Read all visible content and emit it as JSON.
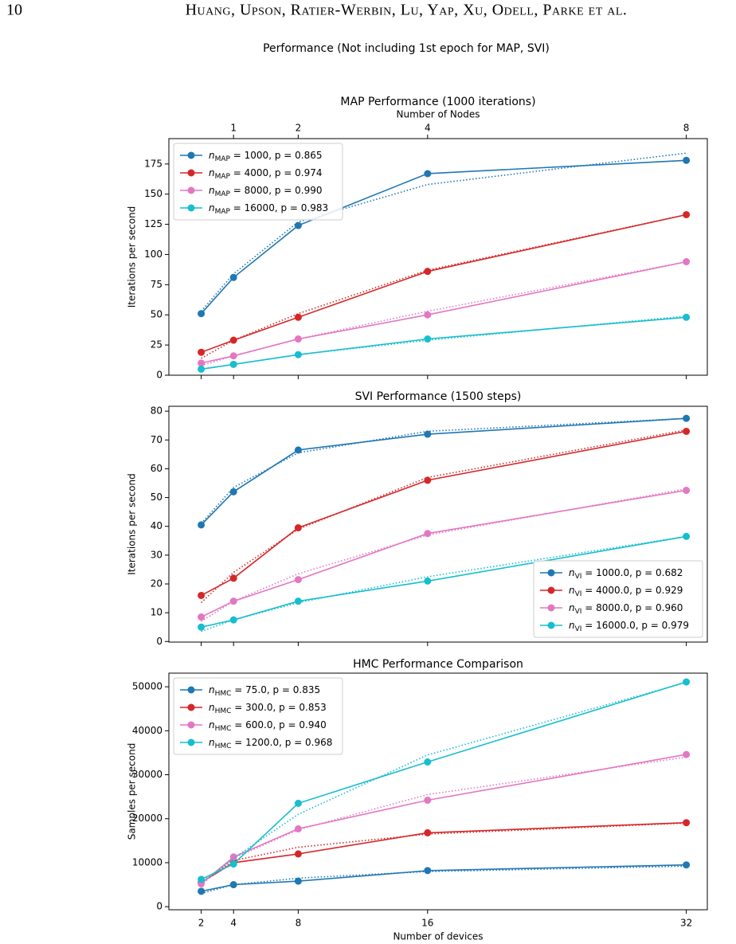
{
  "header": {
    "page_number": "10",
    "authors": "Huang, Upson, Ratier-Werbin, Lu, Yap, Xu, Odell, Parke et al."
  },
  "suptitle": "Performance (Not including 1st epoch for MAP, SVI)",
  "chart_data": [
    {
      "type": "line",
      "title": "MAP Performance (1000 iterations)",
      "ylabel": "Iterations per second",
      "x": [
        2,
        4,
        8,
        16,
        32
      ],
      "xlim": [
        0,
        33.3
      ],
      "xticks": [
        2,
        4,
        8,
        16,
        32
      ],
      "xtick_labels": false,
      "x2label": "Number of Nodes",
      "x2ticks": [
        {
          "value": 4,
          "label": "1"
        },
        {
          "value": 8,
          "label": "2"
        },
        {
          "value": 16,
          "label": "4"
        },
        {
          "value": 32,
          "label": "8"
        }
      ],
      "ylim": [
        0,
        196
      ],
      "yticks": [
        0,
        25,
        50,
        75,
        100,
        125,
        150,
        175
      ],
      "legend": "upper left",
      "series": [
        {
          "symbol": "n",
          "subscript": "MAP",
          "name": " = 1000, p = 0.865",
          "color": "#1f77b4",
          "values": [
            51,
            81,
            124,
            167,
            178
          ],
          "fit_values": [
            53,
            84,
            127,
            158,
            184
          ]
        },
        {
          "symbol": "n",
          "subscript": "MAP",
          "name": " = 4000, p = 0.974",
          "color": "#d62728",
          "values": [
            19,
            29,
            48,
            86,
            133
          ],
          "fit_values": [
            14,
            29,
            51,
            87,
            133
          ]
        },
        {
          "symbol": "n",
          "subscript": "MAP",
          "name": " = 8000, p = 0.990",
          "color": "#e377c2",
          "values": [
            10,
            16,
            30,
            50,
            94
          ],
          "fit_values": [
            8,
            16,
            30,
            53,
            94
          ]
        },
        {
          "symbol": "n",
          "subscript": "MAP",
          "name": " = 16000, p = 0.983",
          "color": "#17becf",
          "values": [
            5,
            9,
            17,
            30,
            48
          ],
          "fit_values": [
            5,
            9,
            17,
            29,
            49
          ]
        }
      ]
    },
    {
      "type": "line",
      "title": "SVI Performance (1500 steps)",
      "ylabel": "Iterations per second",
      "x": [
        2,
        4,
        8,
        16,
        32
      ],
      "xlim": [
        0,
        33.3
      ],
      "xticks": [
        2,
        4,
        8,
        16,
        32
      ],
      "xtick_labels": false,
      "ylim": [
        -0.2,
        81.7
      ],
      "yticks": [
        0,
        10,
        20,
        30,
        40,
        50,
        60,
        70,
        80
      ],
      "legend": "lower right",
      "series": [
        {
          "symbol": "n",
          "subscript": "VI",
          "name": " = 1000.0, p = 0.682",
          "color": "#1f77b4",
          "values": [
            40.5,
            52,
            66.5,
            72,
            77.5
          ],
          "fit_values": [
            41,
            53.5,
            65.5,
            73,
            77.5
          ]
        },
        {
          "symbol": "n",
          "subscript": "VI",
          "name": " = 4000.0, p = 0.929",
          "color": "#d62728",
          "values": [
            16,
            22,
            39.5,
            56,
            73
          ],
          "fit_values": [
            13.5,
            24,
            39,
            57,
            73.5
          ]
        },
        {
          "symbol": "n",
          "subscript": "VI",
          "name": " = 8000.0, p = 0.960",
          "color": "#e377c2",
          "values": [
            8.5,
            14,
            21.5,
            37.5,
            52.5
          ],
          "fit_values": [
            7,
            14,
            23.5,
            37,
            53
          ]
        },
        {
          "symbol": "n",
          "subscript": "VI",
          "name": " = 16000.0, p = 0.979",
          "color": "#17becf",
          "values": [
            5,
            7.5,
            14,
            21,
            36.5
          ],
          "fit_values": [
            3.5,
            7.5,
            13.5,
            22.5,
            36.5
          ]
        }
      ]
    },
    {
      "type": "line",
      "title": "HMC Performance Comparison",
      "ylabel": "Samples per second",
      "xlabel": "Number of devices",
      "x": [
        2,
        4,
        8,
        16,
        32
      ],
      "xlim": [
        0,
        33.3
      ],
      "xticks": [
        2,
        4,
        8,
        16,
        32
      ],
      "xtick_labels": true,
      "ylim": [
        -700,
        53100
      ],
      "yticks": [
        0,
        10000,
        20000,
        30000,
        40000,
        50000
      ],
      "legend": "upper left",
      "series": [
        {
          "symbol": "n",
          "subscript": "HMC",
          "name": " = 75.0, p = 0.835",
          "color": "#1f77b4",
          "values": [
            3500,
            5000,
            5800,
            8200,
            9500
          ],
          "fit_values": [
            3000,
            5000,
            6500,
            8000,
            9200
          ]
        },
        {
          "symbol": "n",
          "subscript": "HMC",
          "name": " = 300.0, p = 0.853",
          "color": "#d62728",
          "values": [
            5500,
            10000,
            12000,
            16800,
            19100
          ],
          "fit_values": [
            5500,
            10500,
            13500,
            16500,
            19000
          ]
        },
        {
          "symbol": "n",
          "subscript": "HMC",
          "name": " = 600.0, p = 0.940",
          "color": "#e377c2",
          "values": [
            5200,
            11300,
            17700,
            24200,
            34600
          ],
          "fit_values": [
            5000,
            11000,
            17500,
            25500,
            34000
          ]
        },
        {
          "symbol": "n",
          "subscript": "HMC",
          "name": " = 1200.0, p = 0.968",
          "color": "#17becf",
          "values": [
            6200,
            9700,
            23500,
            32900,
            51100
          ],
          "fit_values": [
            5500,
            11000,
            21000,
            34500,
            51000
          ]
        }
      ]
    }
  ]
}
